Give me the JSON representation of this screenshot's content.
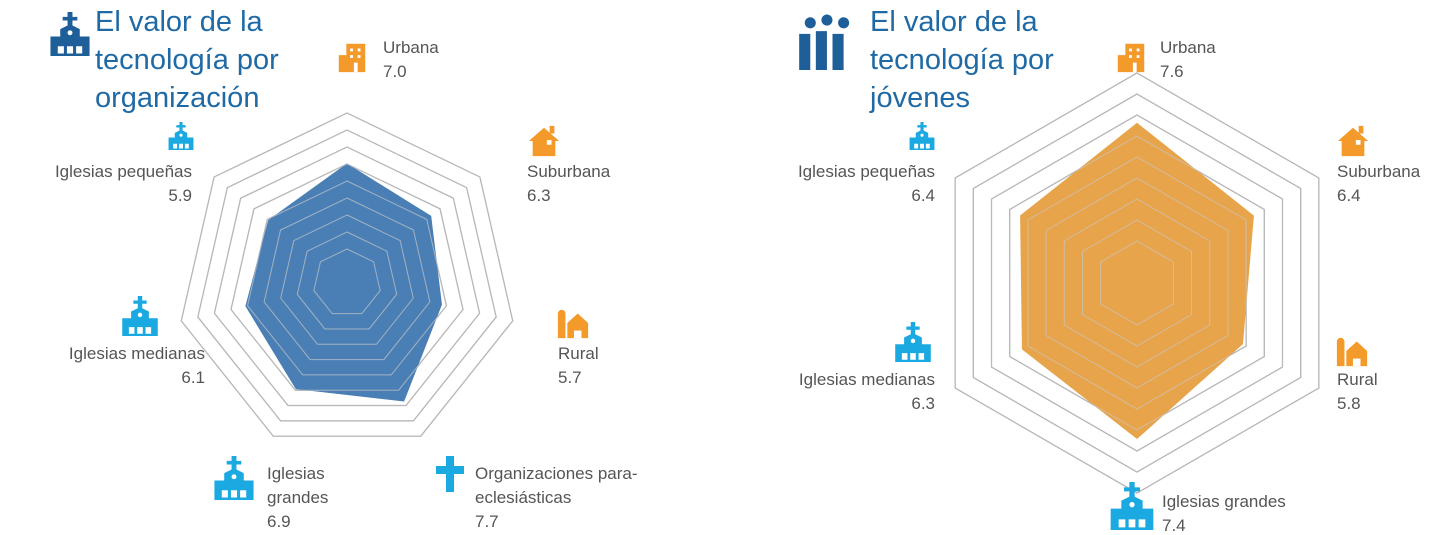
{
  "chart_data": [
    {
      "type": "radar",
      "title": "El valor de la tecnología por organización",
      "categories": [
        "Urbana",
        "Suburbana",
        "Rural",
        "Organizaciones para-eclesiásticas",
        "Iglesias grandes",
        "Iglesias medianas",
        "Iglesias pequeñas"
      ],
      "values": [
        7.0,
        6.3,
        5.7,
        7.7,
        6.9,
        6.1,
        5.9
      ],
      "value_labels": [
        "7.0",
        "6.3",
        "5.7",
        "7.7",
        "6.9",
        "6.1",
        "5.9"
      ],
      "color": "#4a7fb5",
      "rlim": [
        0,
        10
      ],
      "rticks": [
        2,
        3,
        4,
        5,
        6,
        7,
        8,
        9,
        10
      ]
    },
    {
      "type": "radar",
      "title": "El valor de la tecnología por jóvenes",
      "categories": [
        "Urbana",
        "Suburbana",
        "Rural",
        "Iglesias grandes",
        "Iglesias medianas",
        "Iglesias pequeñas"
      ],
      "values": [
        7.6,
        6.4,
        5.8,
        7.4,
        6.3,
        6.4
      ],
      "value_labels": [
        "7.6",
        "6.4",
        "5.8",
        "7.4",
        "6.3",
        "6.4"
      ],
      "color": "#e8a44a",
      "rlim": [
        0,
        10
      ],
      "rticks": [
        2,
        3,
        4,
        5,
        6,
        7,
        8,
        9,
        10
      ]
    }
  ]
}
